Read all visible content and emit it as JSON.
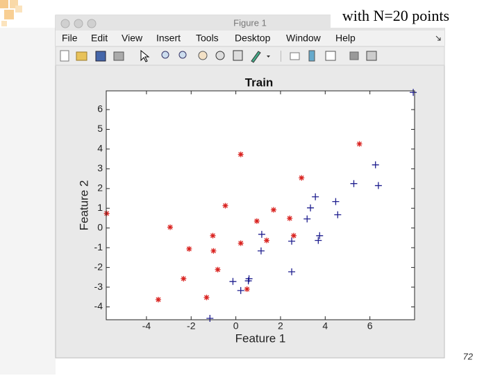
{
  "slide": {
    "note": "with N=20 points",
    "page_number": "72"
  },
  "window": {
    "title": "Figure 1",
    "menu": [
      "File",
      "Edit",
      "View",
      "Insert",
      "Tools",
      "Desktop",
      "Window",
      "Help"
    ]
  },
  "chart_data": {
    "type": "scatter",
    "title": "Train",
    "x_label": "Feature 1",
    "y_label": "Feature 2",
    "xlim": [
      -5.8,
      8
    ],
    "ylim": [
      -4.65,
      6.95
    ],
    "xticks": [
      -4,
      -2,
      0,
      2,
      4,
      6
    ],
    "yticks": [
      -4,
      -3,
      -2,
      -1,
      0,
      1,
      2,
      3,
      4,
      5,
      6
    ],
    "grid": false,
    "series": [
      {
        "color": "#d9221f",
        "marker": "*",
        "x": [
          -5.78,
          0.22,
          5.53,
          2.94,
          -0.47,
          1.69,
          -2.94,
          0.94,
          2.41,
          -1.03,
          2.59,
          -2.09,
          0.22,
          1.38,
          -1.0,
          -0.81,
          -2.34,
          0.5,
          -1.31,
          -3.47
        ],
        "values": [
          0.74,
          3.73,
          4.26,
          2.54,
          1.13,
          0.92,
          0.04,
          0.35,
          0.49,
          -0.39,
          -0.39,
          -1.06,
          -0.77,
          -0.63,
          -1.16,
          -2.11,
          -2.57,
          -3.1,
          -3.52,
          -3.63
        ]
      },
      {
        "color": "#1f1f8f",
        "marker": "+",
        "x": [
          7.94,
          6.25,
          6.38,
          5.28,
          3.56,
          4.47,
          3.34,
          4.56,
          3.19,
          3.75,
          3.69,
          2.5,
          1.16,
          1.13,
          2.5,
          -0.13,
          0.59,
          0.56,
          0.22,
          -1.16
        ],
        "values": [
          6.87,
          3.2,
          2.15,
          2.25,
          1.58,
          1.34,
          1.02,
          0.67,
          0.46,
          -0.39,
          -0.63,
          -0.67,
          -0.32,
          -1.16,
          -2.22,
          -2.71,
          -2.57,
          -2.68,
          -3.17,
          -4.58
        ]
      }
    ]
  }
}
